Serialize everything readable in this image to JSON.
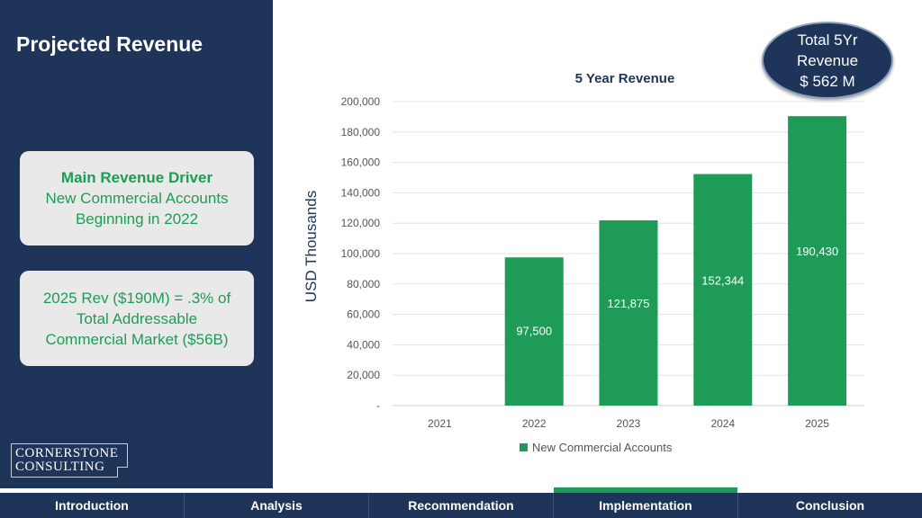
{
  "slide": {
    "title": "Projected Revenue",
    "card1": {
      "heading": "Main Revenue Driver",
      "line1": "New Commercial Accounts",
      "line2": "Beginning in 2022"
    },
    "card2": {
      "line1": "2025 Rev ($190M) = .3% of",
      "line2": "Total Addressable",
      "line3": "Commercial Market ($56B)"
    },
    "logo": {
      "line1": "CORNERSTONE",
      "line2": "CONSULTING"
    },
    "badge": {
      "line1": "Total 5Yr",
      "line2": "Revenue",
      "line3": "$ 562 M"
    }
  },
  "colors": {
    "navy": "#1f3459",
    "green": "#1e9c57",
    "card": "#e9e9e9"
  },
  "nav": {
    "items": [
      {
        "label": "Introduction",
        "active": false
      },
      {
        "label": "Analysis",
        "active": false
      },
      {
        "label": "Recommendation",
        "active": false
      },
      {
        "label": "Implementation",
        "active": true
      },
      {
        "label": "Conclusion",
        "active": false
      }
    ]
  },
  "chart_data": {
    "type": "bar",
    "title": "5 Year Revenue",
    "ylabel": "USD Thousands",
    "xlabel": "",
    "categories": [
      "2021",
      "2022",
      "2023",
      "2024",
      "2025"
    ],
    "series": [
      {
        "name": "New Commercial Accounts",
        "color": "#1e9c57",
        "values": [
          0,
          97500,
          121875,
          152344,
          190430
        ],
        "labels": [
          "",
          "97,500",
          "121,875",
          "152,344",
          "190,430"
        ]
      }
    ],
    "ylim": [
      0,
      200000
    ],
    "yticks": [
      "-",
      "20,000",
      "40,000",
      "60,000",
      "80,000",
      "100,000",
      "120,000",
      "140,000",
      "160,000",
      "180,000",
      "200,000"
    ],
    "grid": true,
    "legend": "bottom"
  }
}
